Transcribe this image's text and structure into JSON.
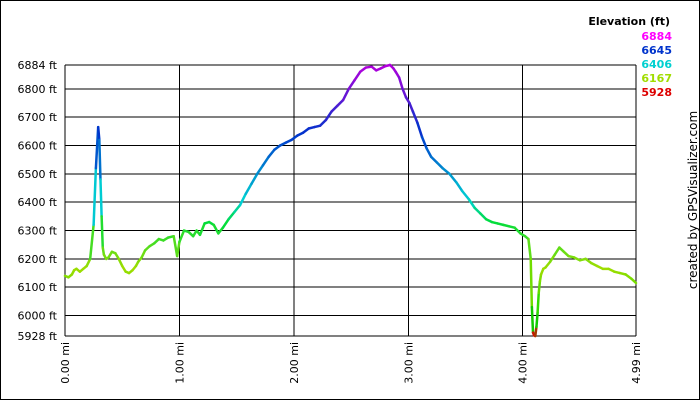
{
  "chart_data": {
    "type": "line",
    "title": "Elevation (ft)",
    "credit": "created by GPSVisualizer.com",
    "xlabel": "",
    "ylabel": "",
    "xlim": [
      0,
      4.99
    ],
    "ylim": [
      5928,
      6884
    ],
    "x_ticks": [
      {
        "value": 0,
        "label": "0.00 mi"
      },
      {
        "value": 1,
        "label": "1.00 mi"
      },
      {
        "value": 2,
        "label": "2.00 mi"
      },
      {
        "value": 3,
        "label": "3.00 mi"
      },
      {
        "value": 4,
        "label": "4.00 mi"
      },
      {
        "value": 4.99,
        "label": "4.99 mi"
      }
    ],
    "y_ticks": [
      {
        "value": 5928,
        "label": "5928 ft"
      },
      {
        "value": 6000,
        "label": "6000 ft"
      },
      {
        "value": 6100,
        "label": "6100 ft"
      },
      {
        "value": 6200,
        "label": "6200 ft"
      },
      {
        "value": 6300,
        "label": "6300 ft"
      },
      {
        "value": 6400,
        "label": "6400 ft"
      },
      {
        "value": 6500,
        "label": "6500 ft"
      },
      {
        "value": 6600,
        "label": "6600 ft"
      },
      {
        "value": 6700,
        "label": "6700 ft"
      },
      {
        "value": 6800,
        "label": "6800 ft"
      },
      {
        "value": 6884,
        "label": "6884 ft"
      }
    ],
    "grid": true,
    "legend_placement": "top-right",
    "color_scale": [
      {
        "label": "6884",
        "color": "#ff00ff"
      },
      {
        "label": "6645",
        "color": "#0033cc"
      },
      {
        "label": "6406",
        "color": "#00d0d0"
      },
      {
        "label": "6167",
        "color": "#a0dd00"
      },
      {
        "label": "5928",
        "color": "#dd0000"
      }
    ],
    "series": [
      {
        "x": [
          0,
          0.03,
          0.06,
          0.08,
          0.1,
          0.13,
          0.16,
          0.19,
          0.22,
          0.25,
          0.27,
          0.29,
          0.3,
          0.31,
          0.32,
          0.33,
          0.34,
          0.36,
          0.38,
          0.41,
          0.44,
          0.47,
          0.5,
          0.53,
          0.56,
          0.59,
          0.62,
          0.64,
          0.67,
          0.7,
          0.74,
          0.78,
          0.82,
          0.86,
          0.9,
          0.95,
          0.98,
          1.0,
          1.04,
          1.08,
          1.12,
          1.15,
          1.18,
          1.22,
          1.26,
          1.3,
          1.34,
          1.38,
          1.43,
          1.48,
          1.53,
          1.58,
          1.63,
          1.68,
          1.73,
          1.78,
          1.83,
          1.88,
          1.93,
          1.98,
          2.03,
          2.08,
          2.13,
          2.18,
          2.23,
          2.28,
          2.33,
          2.38,
          2.43,
          2.48,
          2.53,
          2.58,
          2.63,
          2.68,
          2.72,
          2.76,
          2.8,
          2.84,
          2.87,
          2.89,
          2.92,
          2.95,
          2.98,
          3.01,
          3.04,
          3.08,
          3.12,
          3.16,
          3.2,
          3.25,
          3.3,
          3.36,
          3.42,
          3.47,
          3.53,
          3.58,
          3.63,
          3.68,
          3.73,
          3.78,
          3.83,
          3.88,
          3.93,
          3.98,
          4.02,
          4.05,
          4.07,
          4.08,
          4.09,
          4.1,
          4.11,
          4.12,
          4.13,
          4.14,
          4.15,
          4.16,
          4.18,
          4.2,
          4.24,
          4.28,
          4.32,
          4.36,
          4.4,
          4.45,
          4.5,
          4.55,
          4.6,
          4.65,
          4.7,
          4.75,
          4.8,
          4.85,
          4.9,
          4.95,
          4.99
        ],
        "y": [
          6140,
          6135,
          6145,
          6160,
          6165,
          6155,
          6165,
          6175,
          6200,
          6320,
          6520,
          6665,
          6620,
          6480,
          6350,
          6240,
          6215,
          6200,
          6205,
          6225,
          6220,
          6200,
          6175,
          6155,
          6150,
          6160,
          6175,
          6190,
          6205,
          6230,
          6245,
          6255,
          6270,
          6265,
          6275,
          6280,
          6210,
          6260,
          6300,
          6295,
          6280,
          6300,
          6285,
          6325,
          6330,
          6320,
          6290,
          6310,
          6340,
          6365,
          6390,
          6430,
          6465,
          6500,
          6530,
          6560,
          6585,
          6600,
          6610,
          6620,
          6635,
          6645,
          6660,
          6665,
          6670,
          6690,
          6720,
          6740,
          6760,
          6800,
          6830,
          6860,
          6875,
          6878,
          6865,
          6872,
          6880,
          6884,
          6872,
          6860,
          6840,
          6800,
          6770,
          6750,
          6720,
          6680,
          6630,
          6590,
          6560,
          6540,
          6520,
          6500,
          6470,
          6440,
          6410,
          6380,
          6360,
          6340,
          6330,
          6325,
          6320,
          6315,
          6310,
          6290,
          6280,
          6270,
          6200,
          6030,
          5940,
          5930,
          5928,
          5960,
          6010,
          6080,
          6120,
          6145,
          6165,
          6170,
          6190,
          6215,
          6240,
          6225,
          6210,
          6205,
          6195,
          6200,
          6185,
          6175,
          6165,
          6165,
          6155,
          6150,
          6145,
          6130,
          6115
        ]
      }
    ]
  }
}
